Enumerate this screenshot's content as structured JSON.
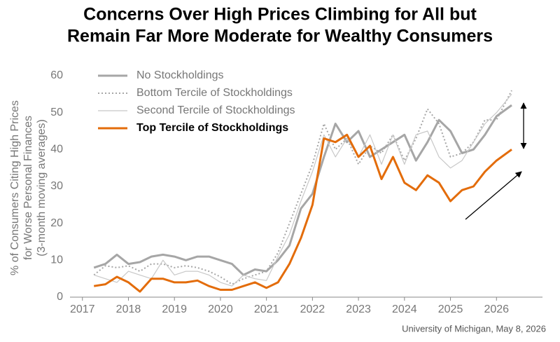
{
  "chart_data": {
    "type": "line",
    "title": [
      "Concerns Over High Prices Climbing for All but",
      "Remain Far More Moderate for Wealthy Consumers"
    ],
    "y_label": [
      "% of Consumers Citing High Prices",
      "for Worse Personal Finances",
      "(3-month moving averages)"
    ],
    "source": "University of Michigan, May 8, 2026",
    "x": [
      2017.25,
      2017.5,
      2017.75,
      2018,
      2018.25,
      2018.5,
      2018.75,
      2019,
      2019.25,
      2019.5,
      2019.75,
      2020,
      2020.25,
      2020.5,
      2020.75,
      2021,
      2021.25,
      2021.5,
      2021.75,
      2022,
      2022.25,
      2022.5,
      2022.75,
      2023,
      2023.25,
      2023.5,
      2023.75,
      2024,
      2024.25,
      2024.5,
      2024.75,
      2025,
      2025.25,
      2025.5,
      2025.75,
      2026,
      2026.33
    ],
    "xlim": [
      2016.73,
      2027
    ],
    "xticks": [
      2017,
      2018,
      2019,
      2020,
      2021,
      2022,
      2023,
      2024,
      2025,
      2026
    ],
    "ylim": [
      0,
      60
    ],
    "yticks": [
      0,
      10,
      20,
      30,
      40,
      50,
      60
    ],
    "series": [
      {
        "name": "No Stockholdings",
        "color": "#a6a6a6",
        "values": [
          8,
          9,
          11.5,
          9,
          9.5,
          11,
          11.5,
          11,
          10,
          11,
          11,
          10,
          9,
          6,
          7.5,
          7,
          10,
          14,
          24,
          28,
          38,
          47,
          42,
          45,
          38,
          40,
          42,
          44,
          37,
          42,
          48,
          45,
          39,
          40,
          44,
          49,
          52
        ]
      },
      {
        "name": "Bottom Tercile of Stockholdings",
        "color": "#a6a6a6",
        "values": [
          6,
          8.5,
          8,
          8.5,
          7,
          9,
          9,
          8,
          8.5,
          8,
          7,
          5.5,
          3.5,
          5,
          6,
          7,
          12,
          20,
          28,
          36,
          47,
          40,
          43,
          36,
          41,
          39,
          44,
          37,
          43,
          51,
          47,
          38,
          39,
          42,
          48,
          48,
          56
        ]
      },
      {
        "name": "Second Tercile of Stockholdings",
        "color": "#c8c8c8",
        "values": [
          6,
          5,
          4,
          7,
          6,
          5,
          10,
          6,
          7,
          7,
          6,
          4,
          3,
          6,
          5,
          4.5,
          11,
          17,
          26,
          34,
          44,
          38,
          43,
          38,
          44,
          36,
          44,
          36,
          44,
          45,
          38,
          35,
          37,
          42,
          47,
          50,
          55
        ]
      },
      {
        "name": "Top Tercile of Stockholdings",
        "color": "#e36c0a",
        "values": [
          3,
          3.5,
          5.5,
          4,
          1.5,
          5,
          5,
          4,
          4,
          4.5,
          3,
          2,
          2,
          3,
          4,
          2.5,
          4,
          9,
          16,
          25,
          43,
          42,
          44,
          38,
          41,
          32,
          38,
          31,
          29,
          33,
          31,
          26,
          29,
          30,
          34,
          37,
          40
        ]
      }
    ]
  }
}
